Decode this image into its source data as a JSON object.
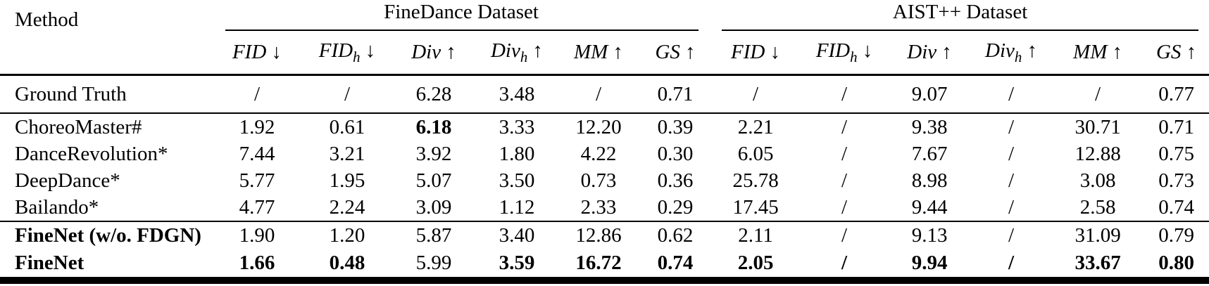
{
  "table": {
    "method_header": "Method",
    "groups": [
      {
        "label": "FineDance Dataset"
      },
      {
        "label": "AIST++ Dataset"
      }
    ],
    "metric_headers": [
      {
        "name": "FID",
        "sub": "",
        "arrow": "↓"
      },
      {
        "name": "FID",
        "sub": "h",
        "arrow": "↓"
      },
      {
        "name": "Div",
        "sub": "",
        "arrow": "↑"
      },
      {
        "name": "Div",
        "sub": "h",
        "arrow": "↑"
      },
      {
        "name": "MM",
        "sub": "",
        "arrow": "↑"
      },
      {
        "name": "GS",
        "sub": "",
        "arrow": "↑"
      }
    ],
    "sections": [
      {
        "rows": [
          {
            "method": "Ground Truth",
            "method_bold": false,
            "values": [
              "/",
              "/",
              "6.28",
              "3.48",
              "/",
              "0.71",
              "/",
              "/",
              "9.07",
              "/",
              "/",
              "0.77"
            ],
            "bold": [
              false,
              false,
              false,
              false,
              false,
              false,
              false,
              false,
              false,
              false,
              false,
              false
            ]
          }
        ]
      },
      {
        "rows": [
          {
            "method": "ChoreoMaster#",
            "method_bold": false,
            "values": [
              "1.92",
              "0.61",
              "6.18",
              "3.33",
              "12.20",
              "0.39",
              "2.21",
              "/",
              "9.38",
              "/",
              "30.71",
              "0.71"
            ],
            "bold": [
              false,
              false,
              true,
              false,
              false,
              false,
              false,
              false,
              false,
              false,
              false,
              false
            ]
          },
          {
            "method": "DanceRevolution*",
            "method_bold": false,
            "values": [
              "7.44",
              "3.21",
              "3.92",
              "1.80",
              "4.22",
              "0.30",
              "6.05",
              "/",
              "7.67",
              "/",
              "12.88",
              "0.75"
            ],
            "bold": [
              false,
              false,
              false,
              false,
              false,
              false,
              false,
              false,
              false,
              false,
              false,
              false
            ]
          },
          {
            "method": "DeepDance*",
            "method_bold": false,
            "values": [
              "5.77",
              "1.95",
              "5.07",
              "3.50",
              "0.73",
              "0.36",
              "25.78",
              "/",
              "8.98",
              "/",
              "3.08",
              "0.73"
            ],
            "bold": [
              false,
              false,
              false,
              false,
              false,
              false,
              false,
              false,
              false,
              false,
              false,
              false
            ]
          },
          {
            "method": "Bailando*",
            "method_bold": false,
            "values": [
              "4.77",
              "2.24",
              "3.09",
              "1.12",
              "2.33",
              "0.29",
              "17.45",
              "/",
              "9.44",
              "/",
              "2.58",
              "0.74"
            ],
            "bold": [
              false,
              false,
              false,
              false,
              false,
              false,
              false,
              false,
              false,
              false,
              false,
              false
            ]
          }
        ]
      },
      {
        "rows": [
          {
            "method": "FineNet (w/o. FDGN)",
            "method_bold": true,
            "values": [
              "1.90",
              "1.20",
              "5.87",
              "3.40",
              "12.86",
              "0.62",
              "2.11",
              "/",
              "9.13",
              "/",
              "31.09",
              "0.79"
            ],
            "bold": [
              false,
              false,
              false,
              false,
              false,
              false,
              false,
              false,
              false,
              false,
              false,
              false
            ]
          },
          {
            "method": "FineNet",
            "method_bold": true,
            "values": [
              "1.66",
              "0.48",
              "5.99",
              "3.59",
              "16.72",
              "0.74",
              "2.05",
              "/",
              "9.94",
              "/",
              "33.67",
              "0.80"
            ],
            "bold": [
              true,
              true,
              false,
              true,
              true,
              true,
              true,
              true,
              true,
              true,
              true,
              true
            ]
          }
        ]
      }
    ]
  },
  "colors": {
    "text": "#000000",
    "background": "#ffffff",
    "rule": "#000000"
  }
}
